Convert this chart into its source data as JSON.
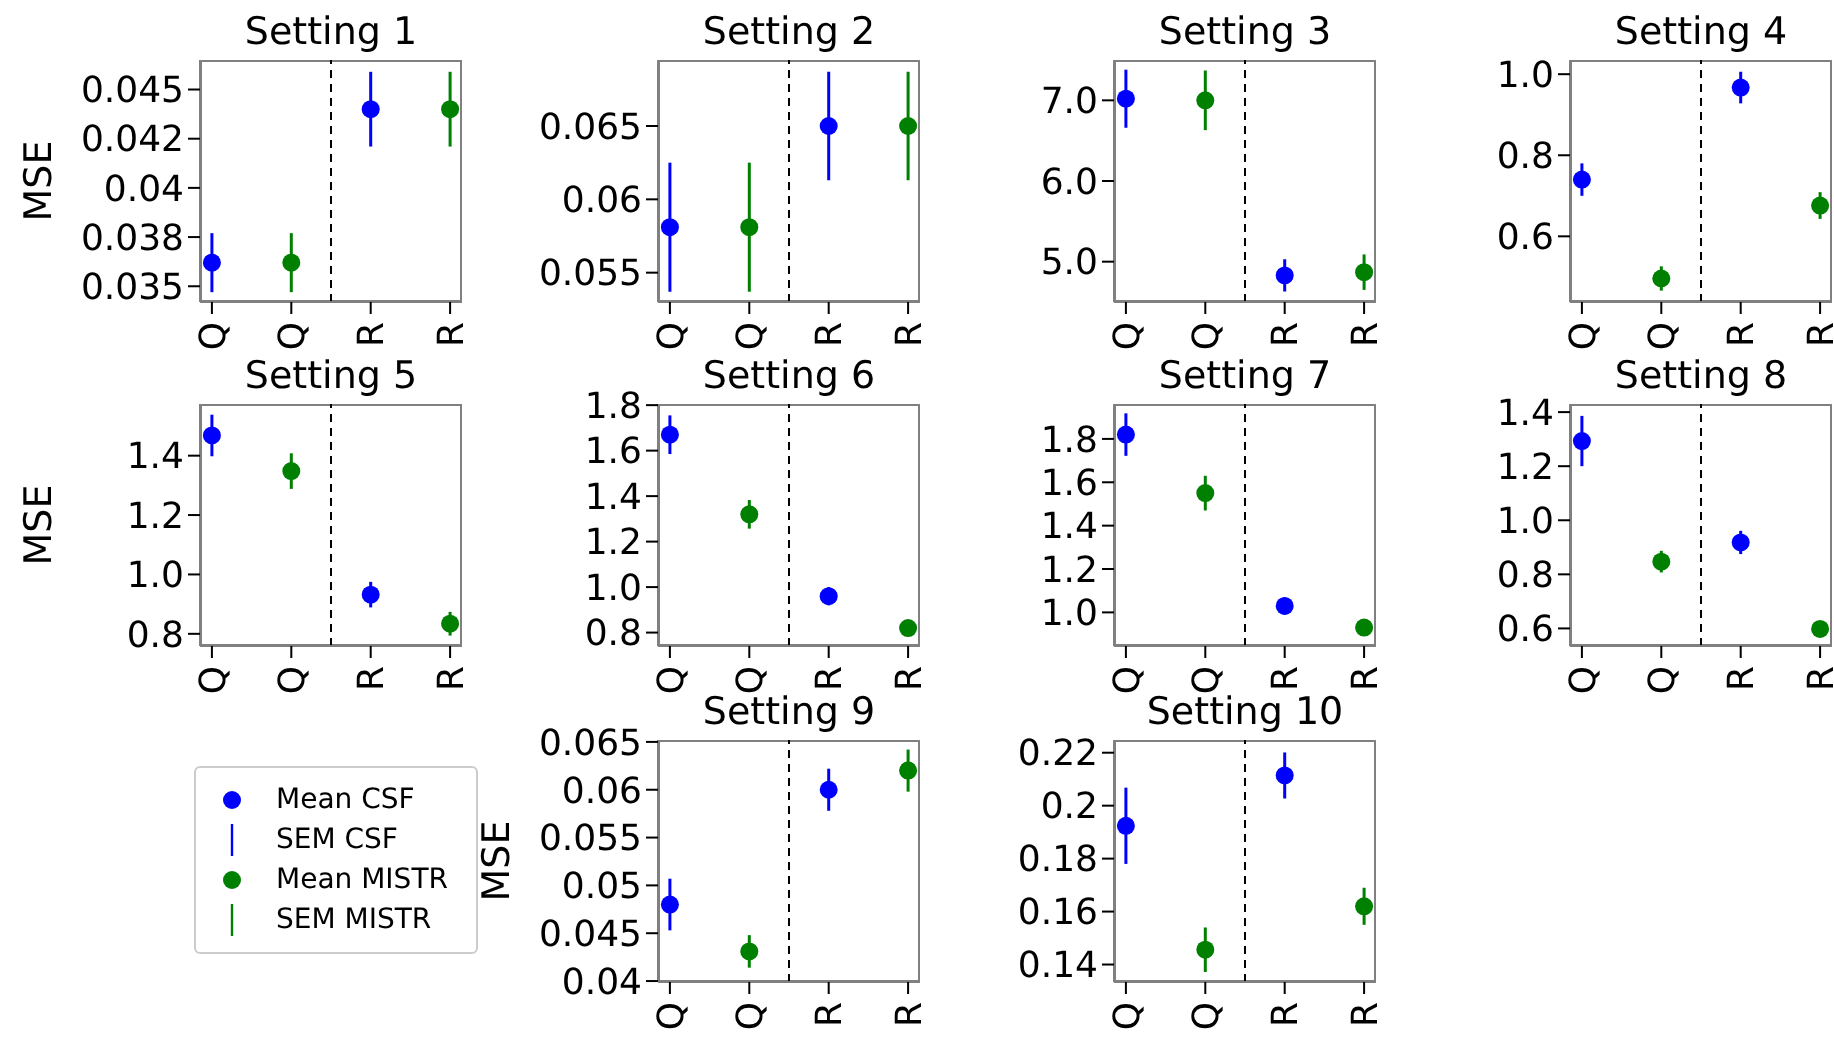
{
  "chart_data": [
    {
      "type": "scatter",
      "title": "Setting 1",
      "ylabel": "MSE",
      "categories": [
        "Q",
        "Q",
        "R",
        "R"
      ],
      "ylim": [
        0.0342,
        0.0465
      ],
      "yticks": [
        0.035,
        {
          "value": 0.0375,
          "label": "0.038"
        },
        0.04,
        {
          "value": 0.0425,
          "label": "0.042"
        },
        0.045
      ],
      "marker": "circle",
      "series": [
        {
          "color": "#0000ff",
          "values": [
            0.0362,
            null,
            0.044,
            null
          ],
          "errors": [
            0.0015,
            null,
            0.0019,
            null
          ]
        },
        {
          "color": "#008000",
          "values": [
            null,
            0.0362,
            null,
            0.044
          ],
          "errors": [
            null,
            0.0015,
            null,
            0.0019
          ]
        }
      ]
    },
    {
      "type": "scatter",
      "title": "Setting 2",
      "categories": [
        "Q",
        "Q",
        "R",
        "R"
      ],
      "ylim": [
        0.053,
        0.0695
      ],
      "yticks": [
        0.055,
        0.06,
        0.065
      ],
      "marker": "circle",
      "series": [
        {
          "color": "#0000ff",
          "values": [
            0.0581,
            null,
            0.065,
            null
          ],
          "errors": [
            0.0044,
            null,
            0.0037,
            null
          ]
        },
        {
          "color": "#008000",
          "values": [
            null,
            0.0581,
            null,
            0.065
          ],
          "errors": [
            null,
            0.0044,
            null,
            0.0037
          ]
        }
      ]
    },
    {
      "type": "scatter",
      "title": "Setting 3",
      "categories": [
        "Q",
        "Q",
        "R",
        "R"
      ],
      "ylim": [
        4.5,
        7.5
      ],
      "yticks": [
        {
          "value": 5,
          "label": "5.0"
        },
        {
          "value": 6,
          "label": "6.0"
        },
        {
          "value": 7,
          "label": "7.0"
        }
      ],
      "marker": "circle",
      "series": [
        {
          "color": "#0000ff",
          "values": [
            7.02,
            null,
            4.83,
            null
          ],
          "errors": [
            0.36,
            null,
            0.2,
            null
          ]
        },
        {
          "color": "#008000",
          "values": [
            null,
            7.0,
            null,
            4.87
          ],
          "errors": [
            null,
            0.37,
            null,
            0.22
          ]
        }
      ]
    },
    {
      "type": "scatter",
      "title": "Setting 4",
      "categories": [
        "Q",
        "Q",
        "R",
        "R"
      ],
      "ylim": [
        0.438,
        1.035
      ],
      "yticks": [
        0.6,
        0.8,
        {
          "value": 1,
          "label": "1.0"
        }
      ],
      "marker": "circle",
      "series": [
        {
          "color": "#0000ff",
          "values": [
            0.74,
            null,
            0.967,
            null
          ],
          "errors": [
            0.04,
            null,
            0.039,
            null
          ]
        },
        {
          "color": "#008000",
          "values": [
            null,
            0.496,
            null,
            0.676
          ],
          "errors": [
            null,
            0.03,
            null,
            0.033
          ]
        }
      ]
    },
    {
      "type": "scatter",
      "title": "Setting 5",
      "ylabel": "MSE",
      "categories": [
        "Q",
        "Q",
        "R",
        "R"
      ],
      "ylim": [
        0.759,
        1.574
      ],
      "yticks": [
        0.8,
        {
          "value": 1,
          "label": "1.0"
        },
        1.2,
        1.4
      ],
      "marker": "circle",
      "series": [
        {
          "color": "#0000ff",
          "values": [
            1.468,
            null,
            0.932,
            null
          ],
          "errors": [
            0.07,
            null,
            0.043,
            null
          ]
        },
        {
          "color": "#008000",
          "values": [
            null,
            1.348,
            null,
            0.834
          ],
          "errors": [
            null,
            0.06,
            null,
            0.04
          ]
        }
      ]
    },
    {
      "type": "scatter",
      "title": "Setting 6",
      "categories": [
        "Q",
        "Q",
        "R",
        "R"
      ],
      "ylim": [
        0.741,
        1.805
      ],
      "yticks": [
        0.8,
        {
          "value": 1,
          "label": "1.0"
        },
        1.2,
        1.4,
        1.6,
        1.8
      ],
      "marker": "circle",
      "series": [
        {
          "color": "#0000ff",
          "values": [
            1.67,
            null,
            0.96,
            null
          ],
          "errors": [
            0.085,
            null,
            0.04,
            null
          ]
        },
        {
          "color": "#008000",
          "values": [
            null,
            1.32,
            null,
            0.82
          ],
          "errors": [
            null,
            0.063,
            null,
            0.023
          ]
        }
      ]
    },
    {
      "type": "scatter",
      "title": "Setting 7",
      "categories": [
        "Q",
        "Q",
        "R",
        "R"
      ],
      "ylim": [
        0.845,
        1.961
      ],
      "yticks": [
        {
          "value": 1,
          "label": "1.0"
        },
        1.2,
        1.4,
        1.6,
        1.8
      ],
      "marker": "circle",
      "series": [
        {
          "color": "#0000ff",
          "values": [
            1.82,
            null,
            1.03,
            null
          ],
          "errors": [
            0.098,
            null,
            0.039,
            null
          ]
        },
        {
          "color": "#008000",
          "values": [
            null,
            1.55,
            null,
            0.93
          ],
          "errors": [
            null,
            0.08,
            null,
            0.03
          ]
        }
      ]
    },
    {
      "type": "scatter",
      "title": "Setting 8",
      "categories": [
        "Q",
        "Q",
        "R",
        "R"
      ],
      "ylim": [
        0.535,
        1.43
      ],
      "yticks": [
        0.6,
        0.8,
        {
          "value": 1,
          "label": "1.0"
        },
        1.2,
        1.4
      ],
      "marker": "circle",
      "series": [
        {
          "color": "#0000ff",
          "values": [
            1.293,
            null,
            0.918,
            null
          ],
          "errors": [
            0.093,
            null,
            0.043,
            null
          ]
        },
        {
          "color": "#008000",
          "values": [
            null,
            0.847,
            null,
            0.598
          ],
          "errors": [
            null,
            0.04,
            null,
            0.02
          ]
        }
      ]
    },
    {
      "type": "scatter",
      "title": "Setting 9",
      "ylabel": "MSE",
      "categories": [
        "Q",
        "Q",
        "R",
        "R"
      ],
      "ylim": [
        0.0399,
        0.0652
      ],
      "yticks": [
        0.04,
        0.045,
        0.05,
        0.055,
        0.06,
        0.065
      ],
      "marker": "circle",
      "legend": "left",
      "annotations": [
        "SEM CSF",
        "SEM MISTR"
      ],
      "series": [
        {
          "name": "Mean CSF",
          "color": "#0000ff",
          "values": [
            0.048,
            null,
            0.06,
            null
          ],
          "errors": [
            0.0027,
            null,
            0.0022,
            null
          ]
        },
        {
          "name": "Mean MISTR",
          "color": "#008000",
          "values": [
            null,
            0.0431,
            null,
            0.062
          ],
          "errors": [
            null,
            0.0017,
            null,
            0.0022
          ]
        }
      ]
    },
    {
      "type": "scatter",
      "title": "Setting 10",
      "categories": [
        "Q",
        "Q",
        "R",
        "R"
      ],
      "ylim": [
        0.1334,
        0.2248
      ],
      "yticks": [
        0.14,
        0.16,
        0.18,
        0.2,
        0.22
      ],
      "marker": "circle",
      "series": [
        {
          "color": "#0000ff",
          "values": [
            0.1924,
            null,
            0.2114,
            null
          ],
          "errors": [
            0.0144,
            null,
            0.0087,
            null
          ]
        },
        {
          "color": "#008000",
          "values": [
            null,
            0.1456,
            null,
            0.162
          ],
          "errors": [
            null,
            0.0084,
            null,
            0.007
          ]
        }
      ]
    }
  ]
}
